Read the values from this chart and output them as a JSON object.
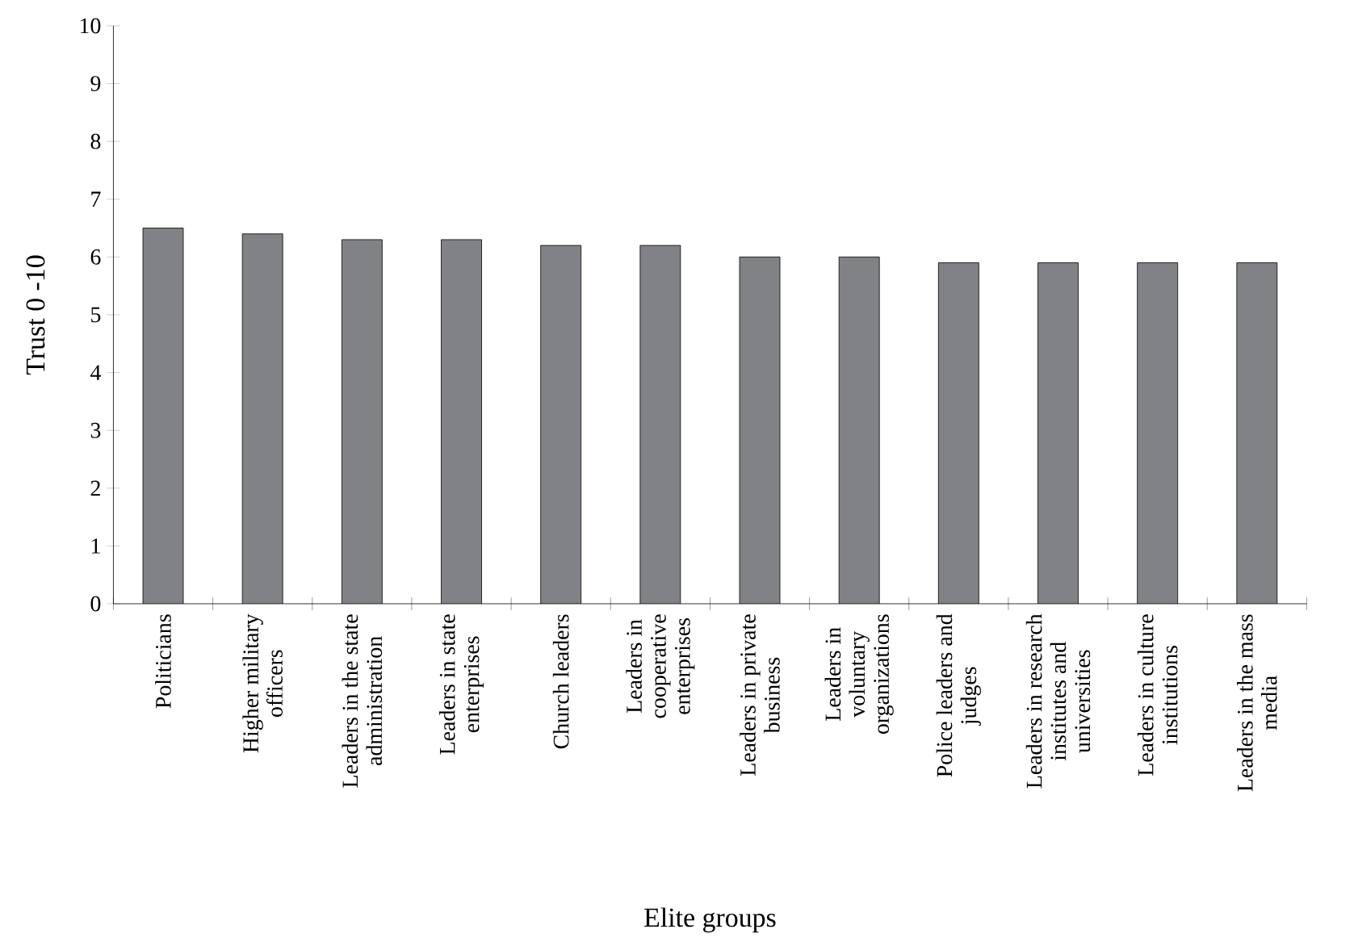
{
  "chart_data": {
    "type": "bar",
    "xlabel": "Elite groups",
    "ylabel": "Trust 0 -10",
    "categories": [
      "Politicians",
      "Higher military officers",
      "Leaders in the state administration",
      "Leaders in state enterprises",
      "Church leaders",
      "Leaders in cooperative enterprises",
      "Leaders in private business",
      "Leaders in voluntary organizations",
      "Police leaders and judges",
      "Leaders in research institutes and universities",
      "Leaders in culture institutions",
      "Leaders in the mass media"
    ],
    "values": [
      6.5,
      6.4,
      6.3,
      6.3,
      6.2,
      6.2,
      6.0,
      6.0,
      5.9,
      5.9,
      5.9,
      5.9
    ],
    "color": "#818285",
    "ylim": [
      0,
      10
    ],
    "yticks": [
      0,
      1,
      2,
      3,
      4,
      5,
      6,
      7,
      8,
      9,
      10
    ],
    "grid": false
  }
}
